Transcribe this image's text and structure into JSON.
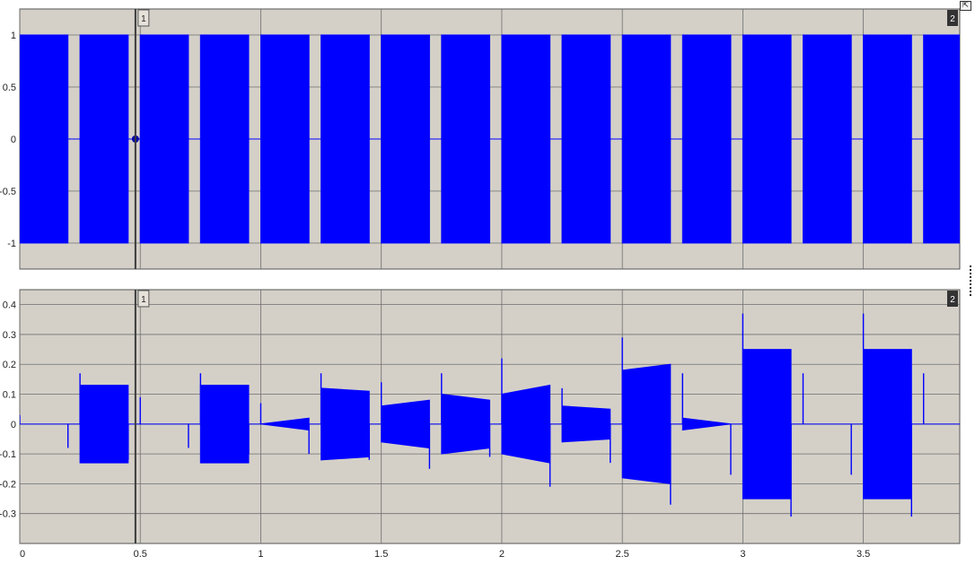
{
  "colors": {
    "background": "#d4d0c8",
    "grid": "#6f6f6f",
    "signal": "#0000ff",
    "cursor": "#3a3a3a",
    "cursor_dark_label": "#333333"
  },
  "toolbar": {
    "undock_icon": "undock-icon"
  },
  "cursors": [
    {
      "label": "1",
      "time": 0.48,
      "style": "light"
    },
    {
      "label": "2",
      "time": 3.88,
      "style": "dark"
    }
  ],
  "chart_data": [
    {
      "type": "line",
      "title": "",
      "xlabel": "",
      "ylabel": "",
      "xlim": [
        0,
        3.9
      ],
      "ylim": [
        -1.25,
        1.25
      ],
      "x_ticks": [
        0,
        0.5,
        1,
        1.5,
        2,
        2.5,
        3,
        3.5
      ],
      "y_ticks": [
        1,
        0.5,
        0,
        -0.5,
        -1
      ],
      "y_tick_labels": [
        "1",
        "0.5",
        "0",
        "-0.5",
        "-1"
      ],
      "show_x_tick_labels": false,
      "grid": true,
      "marker": {
        "x": 0.48,
        "y": 0
      },
      "bursts": [
        {
          "start": 0.0,
          "end": 0.2,
          "hi": 1,
          "lo": -1
        },
        {
          "start": 0.25,
          "end": 0.45,
          "hi": 1,
          "lo": -1
        },
        {
          "start": 0.5,
          "end": 0.7,
          "hi": 1,
          "lo": -1
        },
        {
          "start": 0.75,
          "end": 0.95,
          "hi": 1,
          "lo": -1
        },
        {
          "start": 1.0,
          "end": 1.2,
          "hi": 1,
          "lo": -1
        },
        {
          "start": 1.25,
          "end": 1.45,
          "hi": 1,
          "lo": -1
        },
        {
          "start": 1.5,
          "end": 1.7,
          "hi": 1,
          "lo": -1
        },
        {
          "start": 1.75,
          "end": 1.95,
          "hi": 1,
          "lo": -1
        },
        {
          "start": 2.0,
          "end": 2.2,
          "hi": 1,
          "lo": -1
        },
        {
          "start": 2.25,
          "end": 2.45,
          "hi": 1,
          "lo": -1
        },
        {
          "start": 2.5,
          "end": 2.7,
          "hi": 1,
          "lo": -1
        },
        {
          "start": 2.75,
          "end": 2.95,
          "hi": 1,
          "lo": -1
        },
        {
          "start": 3.0,
          "end": 3.2,
          "hi": 1,
          "lo": -1
        },
        {
          "start": 3.25,
          "end": 3.45,
          "hi": 1,
          "lo": -1
        },
        {
          "start": 3.5,
          "end": 3.7,
          "hi": 1,
          "lo": -1
        },
        {
          "start": 3.75,
          "end": 3.9,
          "hi": 1,
          "lo": -1
        }
      ]
    },
    {
      "type": "line",
      "title": "",
      "xlabel": "",
      "ylabel": "",
      "xlim": [
        0,
        3.9
      ],
      "ylim": [
        -0.4,
        0.45
      ],
      "x_ticks": [
        0,
        0.5,
        1,
        1.5,
        2,
        2.5,
        3,
        3.5
      ],
      "x_tick_labels": [
        "0",
        "0.5",
        "1",
        "1.5",
        "2",
        "2.5",
        "3",
        "3.5"
      ],
      "y_ticks": [
        0.4,
        0.3,
        0.2,
        0.1,
        0,
        -0.1,
        -0.2,
        -0.3
      ],
      "y_tick_labels": [
        "0.4",
        "0.3",
        "0.2",
        "0.1",
        "0",
        "-0.1",
        "-0.2",
        "-0.3"
      ],
      "grid": true,
      "bursts": [
        {
          "start": 0.25,
          "end": 0.45,
          "hi_start": 0.13,
          "hi_end": 0.13,
          "lo_start": -0.13,
          "lo_end": -0.13
        },
        {
          "start": 0.75,
          "end": 0.95,
          "hi_start": 0.13,
          "hi_end": 0.13,
          "lo_start": -0.13,
          "lo_end": -0.13
        },
        {
          "start": 1.0,
          "end": 1.2,
          "hi_start": 0.0,
          "hi_end": 0.02,
          "lo_start": 0.0,
          "lo_end": -0.02
        },
        {
          "start": 1.25,
          "end": 1.45,
          "hi_start": 0.12,
          "hi_end": 0.11,
          "lo_start": -0.12,
          "lo_end": -0.11
        },
        {
          "start": 1.5,
          "end": 1.7,
          "hi_start": 0.06,
          "hi_end": 0.08,
          "lo_start": -0.06,
          "lo_end": -0.08
        },
        {
          "start": 1.75,
          "end": 1.95,
          "hi_start": 0.1,
          "hi_end": 0.08,
          "lo_start": -0.1,
          "lo_end": -0.08
        },
        {
          "start": 2.0,
          "end": 2.2,
          "hi_start": 0.1,
          "hi_end": 0.13,
          "lo_start": -0.1,
          "lo_end": -0.13
        },
        {
          "start": 2.25,
          "end": 2.45,
          "hi_start": 0.06,
          "hi_end": 0.05,
          "lo_start": -0.06,
          "lo_end": -0.05
        },
        {
          "start": 2.5,
          "end": 2.7,
          "hi_start": 0.18,
          "hi_end": 0.2,
          "lo_start": -0.18,
          "lo_end": -0.2
        },
        {
          "start": 2.75,
          "end": 2.95,
          "hi_start": 0.02,
          "hi_end": 0.0,
          "lo_start": -0.02,
          "lo_end": 0.0
        },
        {
          "start": 3.0,
          "end": 3.2,
          "hi_start": 0.25,
          "hi_end": 0.25,
          "lo_start": -0.25,
          "lo_end": -0.25
        },
        {
          "start": 3.5,
          "end": 3.7,
          "hi_start": 0.25,
          "hi_end": 0.25,
          "lo_start": -0.25,
          "lo_end": -0.25
        }
      ],
      "spikes": [
        {
          "x": 0.0,
          "value": 0.03
        },
        {
          "x": 0.2,
          "value": -0.08
        },
        {
          "x": 0.25,
          "value": 0.17
        },
        {
          "x": 0.45,
          "value": -0.12
        },
        {
          "x": 0.5,
          "value": 0.09
        },
        {
          "x": 0.7,
          "value": -0.08
        },
        {
          "x": 0.75,
          "value": 0.17
        },
        {
          "x": 0.95,
          "value": -0.1
        },
        {
          "x": 1.0,
          "value": 0.07
        },
        {
          "x": 1.2,
          "value": -0.1
        },
        {
          "x": 1.25,
          "value": 0.17
        },
        {
          "x": 1.45,
          "value": -0.12
        },
        {
          "x": 1.5,
          "value": 0.14
        },
        {
          "x": 1.7,
          "value": -0.15
        },
        {
          "x": 1.75,
          "value": 0.17
        },
        {
          "x": 1.95,
          "value": -0.11
        },
        {
          "x": 2.0,
          "value": 0.22
        },
        {
          "x": 2.2,
          "value": -0.21
        },
        {
          "x": 2.25,
          "value": 0.12
        },
        {
          "x": 2.45,
          "value": -0.13
        },
        {
          "x": 2.5,
          "value": 0.29
        },
        {
          "x": 2.7,
          "value": -0.27
        },
        {
          "x": 2.75,
          "value": 0.17
        },
        {
          "x": 2.95,
          "value": -0.17
        },
        {
          "x": 3.0,
          "value": 0.37
        },
        {
          "x": 3.2,
          "value": -0.31
        },
        {
          "x": 3.25,
          "value": 0.17
        },
        {
          "x": 3.45,
          "value": -0.17
        },
        {
          "x": 3.5,
          "value": 0.37
        },
        {
          "x": 3.7,
          "value": -0.31
        },
        {
          "x": 3.75,
          "value": 0.17
        }
      ]
    }
  ]
}
